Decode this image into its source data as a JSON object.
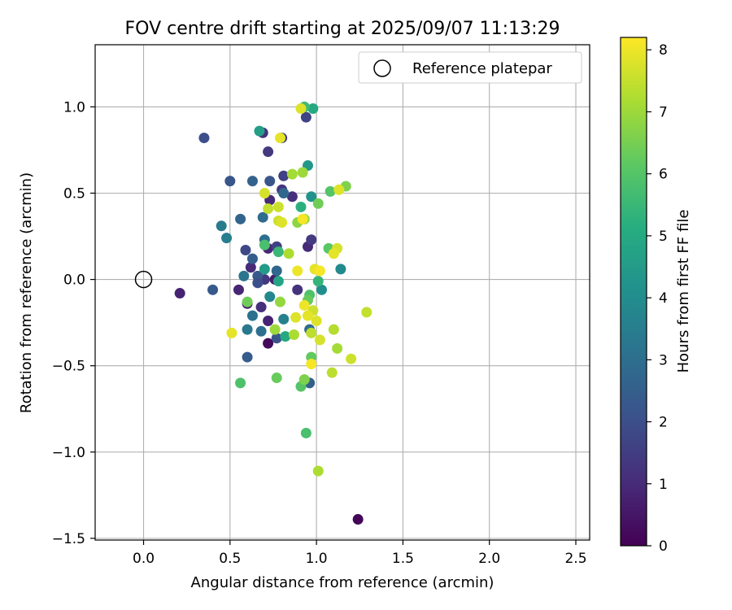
{
  "chart_data": {
    "type": "scatter",
    "title": "FOV centre drift starting at 2025/09/07 11:13:29",
    "xlabel": "Angular distance from reference (arcmin)",
    "ylabel": "Rotation from reference (arcmin)",
    "xlim": [
      -0.28,
      2.58
    ],
    "ylim": [
      -1.51,
      1.36
    ],
    "xticks": [
      0.0,
      0.5,
      1.0,
      1.5,
      2.0,
      2.5
    ],
    "yticks": [
      -1.5,
      -1.0,
      -0.5,
      0.0,
      0.5,
      1.0
    ],
    "xtick_labels": [
      "0.0",
      "0.5",
      "1.0",
      "1.5",
      "2.0",
      "2.5"
    ],
    "ytick_labels": [
      "−1.5",
      "−1.0",
      "−0.5",
      "0.0",
      "0.5",
      "1.0"
    ],
    "grid": true,
    "legend": {
      "position": "top-right",
      "entries": [
        {
          "label": "Reference platepar",
          "marker": "open-circle"
        }
      ]
    },
    "reference_point": {
      "x": 0.0,
      "y": 0.0
    },
    "colorbar": {
      "label": "Hours from first FF file",
      "colormap": "viridis",
      "range": [
        0,
        8.2
      ],
      "ticks": [
        0,
        1,
        2,
        3,
        4,
        5,
        6,
        7,
        8
      ],
      "tick_labels": [
        "0",
        "1",
        "2",
        "3",
        "4",
        "5",
        "6",
        "7",
        "8"
      ]
    },
    "series": [
      {
        "points": [
          {
            "x": 1.24,
            "y": -1.39,
            "c": 0.1
          },
          {
            "x": 0.72,
            "y": -0.37,
            "c": 0.2
          },
          {
            "x": 0.21,
            "y": -0.08,
            "c": 0.8
          },
          {
            "x": 0.55,
            "y": -0.06,
            "c": 0.9
          },
          {
            "x": 0.6,
            "y": -0.14,
            "c": 0.7
          },
          {
            "x": 0.62,
            "y": 0.07,
            "c": 1.0
          },
          {
            "x": 0.68,
            "y": -0.16,
            "c": 1.1
          },
          {
            "x": 0.7,
            "y": 0.0,
            "c": 1.3
          },
          {
            "x": 0.72,
            "y": 0.18,
            "c": 0.9
          },
          {
            "x": 0.76,
            "y": 0.0,
            "c": 0.6
          },
          {
            "x": 0.72,
            "y": -0.24,
            "c": 0.8
          },
          {
            "x": 0.73,
            "y": 0.46,
            "c": 1.0
          },
          {
            "x": 0.69,
            "y": 0.85,
            "c": 1.2
          },
          {
            "x": 0.72,
            "y": 0.74,
            "c": 1.4
          },
          {
            "x": 0.8,
            "y": 0.82,
            "c": 1.5
          },
          {
            "x": 0.8,
            "y": 0.52,
            "c": 1.3
          },
          {
            "x": 0.86,
            "y": 0.48,
            "c": 1.1
          },
          {
            "x": 0.81,
            "y": 0.6,
            "c": 1.6
          },
          {
            "x": 0.94,
            "y": 0.94,
            "c": 1.7
          },
          {
            "x": 0.89,
            "y": -0.06,
            "c": 1.2
          },
          {
            "x": 0.95,
            "y": 0.19,
            "c": 1.0
          },
          {
            "x": 0.97,
            "y": 0.23,
            "c": 1.4
          },
          {
            "x": 0.77,
            "y": 0.19,
            "c": 1.6
          },
          {
            "x": 0.35,
            "y": 0.82,
            "c": 2.0
          },
          {
            "x": 0.5,
            "y": 0.57,
            "c": 2.2
          },
          {
            "x": 0.4,
            "y": -0.06,
            "c": 2.3
          },
          {
            "x": 0.59,
            "y": 0.17,
            "c": 1.8
          },
          {
            "x": 0.63,
            "y": 0.12,
            "c": 2.5
          },
          {
            "x": 0.66,
            "y": 0.02,
            "c": 2.3
          },
          {
            "x": 0.66,
            "y": -0.02,
            "c": 2.0
          },
          {
            "x": 0.6,
            "y": -0.45,
            "c": 2.4
          },
          {
            "x": 0.77,
            "y": -0.34,
            "c": 2.1
          },
          {
            "x": 0.56,
            "y": 0.35,
            "c": 2.7
          },
          {
            "x": 0.63,
            "y": 0.57,
            "c": 2.6
          },
          {
            "x": 0.73,
            "y": 0.57,
            "c": 2.2
          },
          {
            "x": 0.81,
            "y": 0.5,
            "c": 2.8
          },
          {
            "x": 0.69,
            "y": 0.36,
            "c": 2.9
          },
          {
            "x": 0.7,
            "y": 0.23,
            "c": 3.0
          },
          {
            "x": 0.77,
            "y": 0.05,
            "c": 2.8
          },
          {
            "x": 0.58,
            "y": 0.02,
            "c": 3.2
          },
          {
            "x": 0.63,
            "y": -0.21,
            "c": 3.1
          },
          {
            "x": 0.6,
            "y": -0.29,
            "c": 3.3
          },
          {
            "x": 0.68,
            "y": -0.3,
            "c": 3.0
          },
          {
            "x": 0.45,
            "y": 0.31,
            "c": 3.4
          },
          {
            "x": 0.48,
            "y": 0.24,
            "c": 3.5
          },
          {
            "x": 0.81,
            "y": -0.23,
            "c": 3.6
          },
          {
            "x": 0.73,
            "y": -0.1,
            "c": 3.8
          },
          {
            "x": 0.96,
            "y": -0.29,
            "c": 2.9
          },
          {
            "x": 0.96,
            "y": -0.6,
            "c": 2.5
          },
          {
            "x": 1.03,
            "y": -0.06,
            "c": 4.0
          },
          {
            "x": 1.14,
            "y": 0.06,
            "c": 3.9
          },
          {
            "x": 0.97,
            "y": 0.48,
            "c": 4.2
          },
          {
            "x": 0.95,
            "y": 0.66,
            "c": 4.4
          },
          {
            "x": 0.67,
            "y": 0.86,
            "c": 4.6
          },
          {
            "x": 0.7,
            "y": 0.06,
            "c": 4.5
          },
          {
            "x": 0.78,
            "y": -0.01,
            "c": 4.8
          },
          {
            "x": 0.82,
            "y": -0.33,
            "c": 5.0
          },
          {
            "x": 0.91,
            "y": 0.42,
            "c": 5.2
          },
          {
            "x": 0.98,
            "y": 0.99,
            "c": 5.0
          },
          {
            "x": 1.01,
            "y": -0.01,
            "c": 5.4
          },
          {
            "x": 0.93,
            "y": 1.0,
            "c": 5.6
          },
          {
            "x": 0.78,
            "y": 0.16,
            "c": 5.5
          },
          {
            "x": 0.7,
            "y": 0.2,
            "c": 5.8
          },
          {
            "x": 1.08,
            "y": 0.51,
            "c": 6.0
          },
          {
            "x": 1.07,
            "y": 0.18,
            "c": 6.1
          },
          {
            "x": 0.96,
            "y": -0.09,
            "c": 5.9
          },
          {
            "x": 0.95,
            "y": -0.12,
            "c": 6.3
          },
          {
            "x": 0.97,
            "y": -0.45,
            "c": 6.2
          },
          {
            "x": 0.94,
            "y": -0.89,
            "c": 5.8
          },
          {
            "x": 0.56,
            "y": -0.6,
            "c": 5.9
          },
          {
            "x": 0.91,
            "y": -0.62,
            "c": 6.0
          },
          {
            "x": 1.01,
            "y": 0.44,
            "c": 6.4
          },
          {
            "x": 1.17,
            "y": 0.54,
            "c": 6.6
          },
          {
            "x": 0.6,
            "y": -0.13,
            "c": 6.4
          },
          {
            "x": 0.77,
            "y": -0.57,
            "c": 6.3
          },
          {
            "x": 0.93,
            "y": -0.58,
            "c": 6.6
          },
          {
            "x": 0.89,
            "y": 0.33,
            "c": 6.8
          },
          {
            "x": 0.93,
            "y": 0.35,
            "c": 6.9
          },
          {
            "x": 0.92,
            "y": 0.62,
            "c": 7.0
          },
          {
            "x": 0.86,
            "y": 0.61,
            "c": 7.1
          },
          {
            "x": 0.84,
            "y": 0.15,
            "c": 7.2
          },
          {
            "x": 0.79,
            "y": -0.13,
            "c": 6.9
          },
          {
            "x": 0.76,
            "y": -0.29,
            "c": 7.0
          },
          {
            "x": 0.87,
            "y": -0.32,
            "c": 7.2
          },
          {
            "x": 1.1,
            "y": -0.29,
            "c": 7.3
          },
          {
            "x": 1.12,
            "y": -0.4,
            "c": 7.1
          },
          {
            "x": 1.09,
            "y": -0.54,
            "c": 7.4
          },
          {
            "x": 1.01,
            "y": -1.11,
            "c": 7.2
          },
          {
            "x": 1.29,
            "y": -0.19,
            "c": 7.5
          },
          {
            "x": 1.2,
            "y": -0.46,
            "c": 7.6
          },
          {
            "x": 0.98,
            "y": -0.18,
            "c": 7.6
          },
          {
            "x": 0.97,
            "y": -0.31,
            "c": 7.4
          },
          {
            "x": 1.02,
            "y": -0.35,
            "c": 7.7
          },
          {
            "x": 1.0,
            "y": -0.24,
            "c": 7.8
          },
          {
            "x": 0.95,
            "y": -0.21,
            "c": 7.9
          },
          {
            "x": 0.93,
            "y": -0.15,
            "c": 8.0
          },
          {
            "x": 0.88,
            "y": -0.22,
            "c": 7.8
          },
          {
            "x": 0.97,
            "y": -0.49,
            "c": 8.1
          },
          {
            "x": 0.99,
            "y": 0.06,
            "c": 7.9
          },
          {
            "x": 1.02,
            "y": 0.05,
            "c": 8.1
          },
          {
            "x": 0.89,
            "y": 0.05,
            "c": 8.0
          },
          {
            "x": 1.12,
            "y": 0.18,
            "c": 7.7
          },
          {
            "x": 1.1,
            "y": 0.15,
            "c": 7.9
          },
          {
            "x": 1.13,
            "y": 0.52,
            "c": 7.8
          },
          {
            "x": 0.78,
            "y": 0.34,
            "c": 7.6
          },
          {
            "x": 0.8,
            "y": 0.33,
            "c": 7.8
          },
          {
            "x": 0.72,
            "y": 0.41,
            "c": 7.5
          },
          {
            "x": 0.78,
            "y": 0.42,
            "c": 7.6
          },
          {
            "x": 0.7,
            "y": 0.5,
            "c": 7.7
          },
          {
            "x": 0.91,
            "y": 0.99,
            "c": 7.8
          },
          {
            "x": 0.79,
            "y": 0.82,
            "c": 7.9
          },
          {
            "x": 0.51,
            "y": -0.31,
            "c": 7.9
          },
          {
            "x": 0.92,
            "y": 0.35,
            "c": 8.1
          }
        ]
      }
    ]
  }
}
